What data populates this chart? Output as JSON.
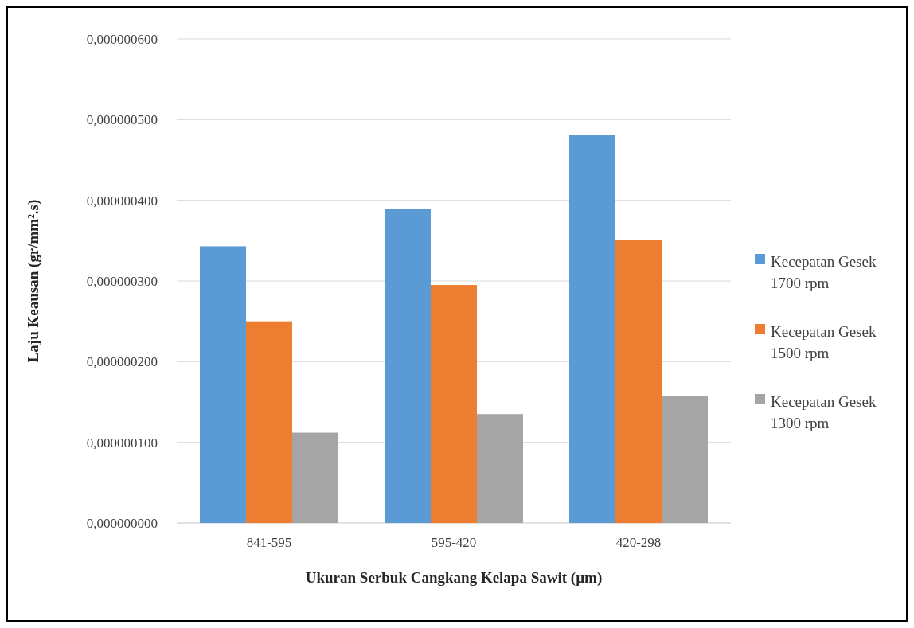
{
  "chart_data": {
    "type": "bar",
    "xlabel": "Ukuran Serbuk Cangkang Kelapa Sawit (µm)",
    "ylabel": "Laju Keausan (gr/mm².s)",
    "categories": [
      "841-595",
      "595-420",
      "420-298"
    ],
    "series": [
      {
        "name": "Kecepatan Gesek 1700 rpm",
        "color": "#5b9bd5",
        "values": [
          3.43e-07,
          3.89e-07,
          4.81e-07
        ]
      },
      {
        "name": "Kecepatan Gesek 1500 rpm",
        "color": "#ed7d31",
        "values": [
          2.5e-07,
          2.95e-07,
          3.51e-07
        ]
      },
      {
        "name": "Kecepatan Gesek 1300 rpm",
        "color": "#a5a5a5",
        "values": [
          1.12e-07,
          1.35e-07,
          1.57e-07
        ]
      }
    ],
    "ylim": [
      0,
      6e-07
    ],
    "yticks": [
      {
        "value": 0,
        "label": "0,000000000"
      },
      {
        "value": 1e-07,
        "label": "0,000000100"
      },
      {
        "value": 2e-07,
        "label": "0,000000200"
      },
      {
        "value": 3e-07,
        "label": "0,000000300"
      },
      {
        "value": 4e-07,
        "label": "0,000000400"
      },
      {
        "value": 5e-07,
        "label": "0,000000500"
      },
      {
        "value": 6e-07,
        "label": "0,000000600"
      }
    ],
    "grid": "y",
    "legend": "right"
  }
}
